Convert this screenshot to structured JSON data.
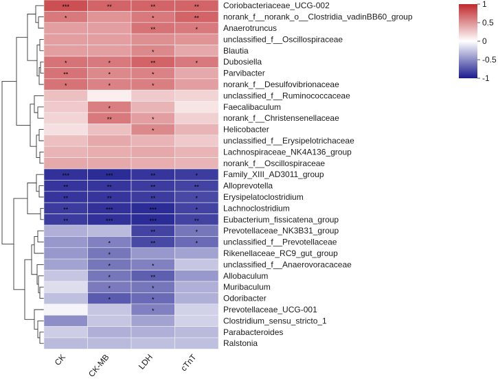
{
  "chart_data": {
    "type": "heatmap",
    "columns": [
      "CK",
      "CK-MB",
      "LDH",
      "cTnT"
    ],
    "rows": [
      "Coriobacteriaceae_UCG-002",
      "norank_f__norank_o__Clostridia_vadinBB60_group",
      "Anaerotruncus",
      "unclassified_f__Oscillospiraceae",
      "Blautia",
      "Dubosiella",
      "Parvibacter",
      "norank_f__Desulfovibrionaceae",
      "unclassified_f__Ruminococcaceae",
      "Faecalibaculum",
      "norank_f__Christensenellaceae",
      "Helicobacter",
      "unclassified_f__Erysipelotrichaceae",
      "Lachnospiraceae_NK4A136_group",
      "norank_f__Oscillospiraceae",
      "Family_XIII_AD3011_group",
      "Alloprevotella",
      "Erysipelatoclostridium",
      "Lachnoclostridium",
      "Eubacterium_fissicatena_group",
      "Prevotellaceae_NK3B31_group",
      "unclassified_f__Prevotellaceae",
      "Rikenellaceae_RC9_gut_group",
      "unclassified_f__Anaerovoracaceae",
      "Allobaculum",
      "Muribaculum",
      "Odoribacter",
      "Prevotellaceae_UCG-001",
      "Clostridium_sensu_stricto_1",
      "Parabacteroides",
      "Ralstonia"
    ],
    "values": [
      [
        0.82,
        0.72,
        0.72,
        0.72
      ],
      [
        0.62,
        0.5,
        0.62,
        0.72
      ],
      [
        0.45,
        0.45,
        0.65,
        0.62
      ],
      [
        0.45,
        0.45,
        0.52,
        0.5
      ],
      [
        0.45,
        0.45,
        0.55,
        0.4
      ],
      [
        0.65,
        0.62,
        0.72,
        0.62
      ],
      [
        0.65,
        0.55,
        0.58,
        0.4
      ],
      [
        0.65,
        0.58,
        0.6,
        0.45
      ],
      [
        0.3,
        0.08,
        0.25,
        0.2
      ],
      [
        0.25,
        0.6,
        0.35,
        0.12
      ],
      [
        0.2,
        0.62,
        0.45,
        0.22
      ],
      [
        0.15,
        0.3,
        0.55,
        0.35
      ],
      [
        0.3,
        0.4,
        0.35,
        0.25
      ],
      [
        0.35,
        0.38,
        0.4,
        0.35
      ],
      [
        0.4,
        0.4,
        0.38,
        0.35
      ],
      [
        -0.9,
        -0.92,
        -0.88,
        -0.85
      ],
      [
        -0.88,
        -0.88,
        -0.85,
        -0.82
      ],
      [
        -0.88,
        -0.88,
        -0.85,
        -0.8
      ],
      [
        -0.85,
        -0.9,
        -0.92,
        -0.82
      ],
      [
        -0.85,
        -0.9,
        -0.92,
        -0.82
      ],
      [
        -0.35,
        -0.3,
        -0.82,
        -0.6
      ],
      [
        -0.45,
        -0.55,
        -0.8,
        -0.65
      ],
      [
        -0.45,
        -0.6,
        -0.45,
        -0.4
      ],
      [
        -0.4,
        -0.6,
        -0.55,
        -0.25
      ],
      [
        -0.25,
        -0.6,
        -0.7,
        -0.45
      ],
      [
        -0.15,
        -0.58,
        -0.6,
        -0.35
      ],
      [
        -0.28,
        -0.72,
        -0.65,
        -0.35
      ],
      [
        -0.05,
        -0.25,
        -0.55,
        -0.2
      ],
      [
        -0.5,
        -0.25,
        -0.4,
        -0.2
      ],
      [
        -0.22,
        -0.35,
        -0.35,
        -0.3
      ],
      [
        -0.3,
        -0.3,
        -0.28,
        -0.28
      ]
    ],
    "significance": [
      [
        "***",
        "**",
        "**",
        "**"
      ],
      [
        "*",
        "",
        "*",
        "**"
      ],
      [
        "",
        "",
        "**",
        "*"
      ],
      [
        "",
        "",
        "",
        ""
      ],
      [
        "",
        "",
        "*",
        ""
      ],
      [
        "*",
        "*",
        "**",
        "*"
      ],
      [
        "**",
        "*",
        "*",
        ""
      ],
      [
        "*",
        "*",
        "*",
        ""
      ],
      [
        "",
        "",
        "",
        ""
      ],
      [
        "",
        "*",
        "",
        ""
      ],
      [
        "",
        "**",
        "*",
        ""
      ],
      [
        "",
        "",
        "*",
        ""
      ],
      [
        "",
        "",
        "",
        ""
      ],
      [
        "",
        "",
        "",
        ""
      ],
      [
        "",
        "",
        "",
        ""
      ],
      [
        "***",
        "***",
        "**",
        "*"
      ],
      [
        "**",
        "**",
        "**",
        "**"
      ],
      [
        "**",
        "**",
        "**",
        "*"
      ],
      [
        "**",
        "***",
        "***",
        "*"
      ],
      [
        "**",
        "***",
        "***",
        "**"
      ],
      [
        "",
        "",
        "**",
        "*"
      ],
      [
        "",
        "*",
        "**",
        "*"
      ],
      [
        "",
        "*",
        "",
        ""
      ],
      [
        "",
        "*",
        "*",
        ""
      ],
      [
        "",
        "*",
        "**",
        ""
      ],
      [
        "",
        "*",
        "*",
        ""
      ],
      [
        "",
        "*",
        "*",
        ""
      ],
      [
        "",
        "",
        "*",
        ""
      ],
      [
        "",
        "",
        "",
        ""
      ],
      [
        "",
        "",
        "",
        ""
      ],
      [
        "",
        "",
        "",
        ""
      ]
    ],
    "color_scale": {
      "min": -1,
      "max": 1,
      "low_color": "#1a1a8e",
      "mid_color": "#ffffff",
      "high_color": "#c0282d",
      "ticks": [
        1,
        0.5,
        0,
        -0.5,
        -1
      ],
      "tick_labels": [
        "1",
        "0.5",
        "0",
        "-0.5",
        "-1"
      ]
    },
    "dendrogram": "row clustering, left side",
    "legend_position": "top-right"
  }
}
